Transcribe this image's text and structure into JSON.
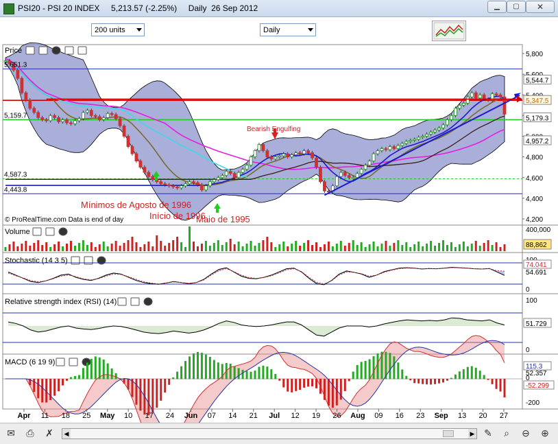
{
  "window": {
    "title": "PSI20 - PSI 20 INDEX     5,213.57 (-2.25%)     Daily  26 Sep 2012"
  },
  "toolbar": {
    "units_select": "200 units",
    "period_select": "Daily"
  },
  "colors": {
    "price_bg": "#ffffff",
    "bollinger_fill": "#8e94cd",
    "candle_up": "#1c8c1c",
    "candle_down": "#d03030",
    "resistance_red": "#d00000",
    "support_green": "#22cc22",
    "trend_blue": "#1a1ad0",
    "sma_magenta": "#e020e0",
    "sma_cyan": "#3fd8e8"
  },
  "chart_data": [
    {
      "type": "candlestick",
      "panel": "Price",
      "title": "Price",
      "ylim": [
        4200,
        5900
      ],
      "ytick_labels": [
        "5,800",
        "5,600",
        "5,400",
        "5,200",
        "5,000",
        "4,800",
        "4,600",
        "4,400",
        "4,200"
      ],
      "xtick_labels": [
        "Apr",
        "11",
        "18",
        "25",
        "May",
        "10",
        "17",
        "24",
        "Jun",
        "07",
        "14",
        "21",
        "Jul",
        "12",
        "19",
        "26",
        "Aug",
        "09",
        "16",
        "23",
        "Sep",
        "13",
        "20",
        "27"
      ],
      "close_series": [
        5730,
        5700,
        5640,
        5560,
        5420,
        5350,
        5270,
        5230,
        5180,
        5160,
        5150,
        5200,
        5180,
        5140,
        5160,
        5130,
        5120,
        5150,
        5170,
        5230,
        5250,
        5200,
        5190,
        5160,
        5180,
        5220,
        5210,
        5170,
        5100,
        5000,
        4900,
        4830,
        4760,
        4700,
        4650,
        4610,
        4580,
        4560,
        4540,
        4530,
        4520,
        4510,
        4500,
        4520,
        4540,
        4560,
        4550,
        4530,
        4480,
        4520,
        4560,
        4580,
        4600,
        4620,
        4660,
        4640,
        4600,
        4650,
        4680,
        4720,
        4800,
        4860,
        4920,
        4860,
        4800,
        4780,
        4800,
        4810,
        4830,
        4800,
        4820,
        4840,
        4830,
        4860,
        4840,
        4790,
        4700,
        4560,
        4470,
        4460,
        4520,
        4610,
        4650,
        4620,
        4600,
        4600,
        4640,
        4680,
        4720,
        4760,
        4830,
        4860,
        4880,
        4870,
        4900,
        4880,
        4910,
        4930,
        4950,
        4960,
        4970,
        4990,
        5000,
        5020,
        5040,
        5060,
        5080,
        5110,
        5160,
        5200,
        5270,
        5300,
        5320,
        5380,
        5420,
        5370,
        5400,
        5360,
        5350,
        5410,
        5400,
        5380,
        5213
      ],
      "close_labels": [
        "5,544.7",
        "5,347.5",
        "5,179.3",
        "4,957.2"
      ],
      "level_labels": [
        "5,651.3",
        "5,159.7",
        "4,587.3",
        "4,443.8"
      ],
      "annotations": [
        "Bearish Engulfing",
        "Mínimos de Agosto de 1996",
        "Início de 1996",
        "Maio de 1995"
      ],
      "legend": "top-left",
      "footer": "© ProRealTime.com  Data is end of day"
    },
    {
      "type": "bar",
      "panel": "Volume",
      "title": "Volume",
      "ytick_labels": [
        "400,000",
        "200,000"
      ],
      "last_value": "88,862"
    },
    {
      "type": "line",
      "panel": "Stochastic",
      "title": "Stochastic (14 3 5)",
      "ylim": [
        0,
        100
      ],
      "ytick_labels": [
        "100",
        "0"
      ],
      "series": [
        {
          "values": [
            70,
            55,
            40,
            25,
            20,
            28,
            40,
            55,
            60,
            45,
            35,
            30,
            40,
            55,
            65,
            60,
            45,
            30,
            20,
            15,
            12,
            18,
            25,
            20,
            15,
            20,
            35,
            60,
            82,
            90,
            70,
            50,
            40,
            38,
            45,
            55,
            70,
            85,
            88,
            70,
            40,
            15,
            10,
            30,
            60,
            75,
            68,
            60,
            45,
            55,
            72,
            80,
            88,
            90,
            88,
            84,
            86,
            85,
            88,
            92,
            90,
            88,
            85,
            84,
            86,
            70,
            54
          ]
        },
        {
          "values": [
            65,
            52,
            42,
            30,
            24,
            28,
            38,
            50,
            55,
            48,
            38,
            33,
            38,
            50,
            60,
            58,
            48,
            35,
            24,
            18,
            14,
            18,
            23,
            20,
            17,
            20,
            32,
            55,
            75,
            85,
            72,
            55,
            44,
            40,
            44,
            52,
            65,
            80,
            85,
            72,
            45,
            22,
            14,
            28,
            55,
            70,
            68,
            62,
            50,
            55,
            68,
            78,
            85,
            88,
            87,
            85,
            85,
            85,
            87,
            90,
            89,
            87,
            85,
            84,
            85,
            76,
            74
          ]
        }
      ],
      "value_labels": [
        "74.041",
        "54.691"
      ]
    },
    {
      "type": "line",
      "panel": "RSI",
      "title": "Relative strength index (RSI) (14)",
      "ytick_labels": [
        "100",
        "0"
      ],
      "series": [
        {
          "values": [
            58,
            55,
            50,
            42,
            38,
            40,
            44,
            48,
            50,
            46,
            44,
            43,
            45,
            48,
            50,
            49,
            46,
            42,
            38,
            36,
            35,
            37,
            40,
            38,
            36,
            38,
            42,
            48,
            55,
            60,
            57,
            52,
            50,
            49,
            50,
            52,
            55,
            58,
            58,
            52,
            42,
            32,
            30,
            38,
            46,
            50,
            50,
            50,
            48,
            50,
            54,
            57,
            60,
            62,
            61,
            60,
            61,
            60,
            62,
            66,
            65,
            62,
            61,
            60,
            62,
            56,
            52
          ]
        }
      ],
      "value_labels": [
        "51.729"
      ]
    },
    {
      "type": "bar",
      "panel": "MACD",
      "title": "MACD (6 19 9)",
      "ytick_labels": [
        "0",
        "-200"
      ],
      "value_labels": [
        "115.3",
        "52.357",
        "-52.299"
      ]
    }
  ]
}
